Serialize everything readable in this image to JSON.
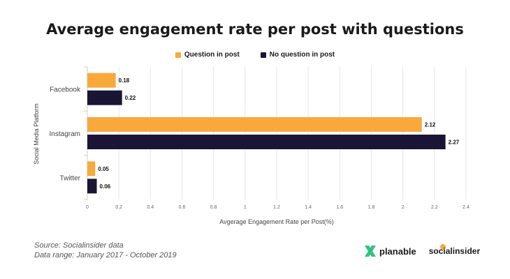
{
  "chart_data": {
    "type": "bar",
    "orientation": "horizontal",
    "title": "Average engagement rate per post with questions",
    "xlabel": "Avgerage Engagement Rate per Post(%)",
    "ylabel": "Social Media Platform",
    "categories": [
      "Facebook",
      "Instagram",
      "Twitter"
    ],
    "series": [
      {
        "name": "Question in post",
        "values": [
          0.18,
          2.12,
          0.05
        ],
        "color": "#F9A93B"
      },
      {
        "name": "No question in post",
        "values": [
          0.22,
          2.27,
          0.06
        ],
        "color": "#1B1535"
      }
    ],
    "value_labels": [
      [
        "0.18",
        "2.12",
        "0.05"
      ],
      [
        "0.22",
        "2.27",
        "0.06"
      ]
    ],
    "xlim": [
      0,
      2.4
    ],
    "xticks": [
      0,
      0.2,
      0.4,
      0.6,
      0.8,
      1,
      1.2,
      1.4,
      1.6,
      1.8,
      2,
      2.2,
      2.4
    ],
    "xtick_labels": [
      "0",
      "0.2",
      "0.4",
      "0.6",
      "0.8",
      "1",
      "1.2",
      "1.4",
      "1.6",
      "1.8",
      "2",
      "2.2",
      "2.4"
    ],
    "grid": true,
    "legend_position": "top-center"
  },
  "footer": {
    "source": "Source: Socialinsider data",
    "range": "Data range: January 2017 - October 2019"
  },
  "logos": {
    "planable": "planable",
    "socialinsider": "socialinsider",
    "planable_icon": "planable-x-icon",
    "planable_color": "#2FC47E",
    "socialinsider_icon": "socialinsider-dot-icon",
    "socialinsider_accent": "#F9A93B"
  }
}
